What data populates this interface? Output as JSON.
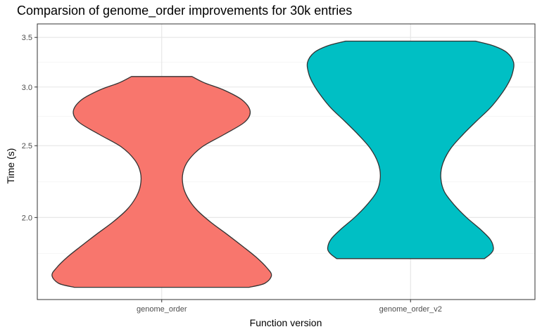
{
  "chart_data": {
    "type": "violin",
    "title": "Comparsion of genome_order improvements for 30k entries",
    "xlabel": "Function version",
    "ylabel": "Time (s)",
    "y_scale": "log",
    "ylim": [
      1.55,
      3.65
    ],
    "y_ticks": [
      2.0,
      2.5,
      3.0,
      3.5
    ],
    "y_tick_labels": [
      "2.0",
      "2.5",
      "3.0",
      "3.5"
    ],
    "categories": [
      "genome_order",
      "genome_order_v2"
    ],
    "grid": true,
    "series": [
      {
        "name": "genome_order",
        "color": "#F8766D",
        "min": 1.61,
        "max": 3.1,
        "density_profile": [
          [
            1.61,
            0.78
          ],
          [
            1.63,
            0.92
          ],
          [
            1.67,
            0.98
          ],
          [
            1.71,
            0.94
          ],
          [
            1.77,
            0.84
          ],
          [
            1.83,
            0.72
          ],
          [
            1.9,
            0.58
          ],
          [
            1.97,
            0.44
          ],
          [
            2.05,
            0.31
          ],
          [
            2.13,
            0.23
          ],
          [
            2.21,
            0.19
          ],
          [
            2.3,
            0.19
          ],
          [
            2.39,
            0.24
          ],
          [
            2.49,
            0.36
          ],
          [
            2.59,
            0.56
          ],
          [
            2.69,
            0.74
          ],
          [
            2.78,
            0.79
          ],
          [
            2.88,
            0.72
          ],
          [
            2.97,
            0.56
          ],
          [
            3.04,
            0.38
          ],
          [
            3.1,
            0.27
          ]
        ]
      },
      {
        "name": "genome_order_v2",
        "color": "#00BFC4",
        "min": 1.76,
        "max": 3.46,
        "density_profile": [
          [
            1.76,
            0.66
          ],
          [
            1.79,
            0.72
          ],
          [
            1.82,
            0.74
          ],
          [
            1.87,
            0.71
          ],
          [
            1.93,
            0.62
          ],
          [
            2.0,
            0.5
          ],
          [
            2.08,
            0.39
          ],
          [
            2.17,
            0.3
          ],
          [
            2.27,
            0.27
          ],
          [
            2.37,
            0.29
          ],
          [
            2.48,
            0.36
          ],
          [
            2.59,
            0.47
          ],
          [
            2.7,
            0.59
          ],
          [
            2.81,
            0.71
          ],
          [
            2.92,
            0.8
          ],
          [
            3.03,
            0.87
          ],
          [
            3.13,
            0.91
          ],
          [
            3.24,
            0.92
          ],
          [
            3.34,
            0.86
          ],
          [
            3.41,
            0.74
          ],
          [
            3.46,
            0.58
          ]
        ]
      }
    ]
  }
}
